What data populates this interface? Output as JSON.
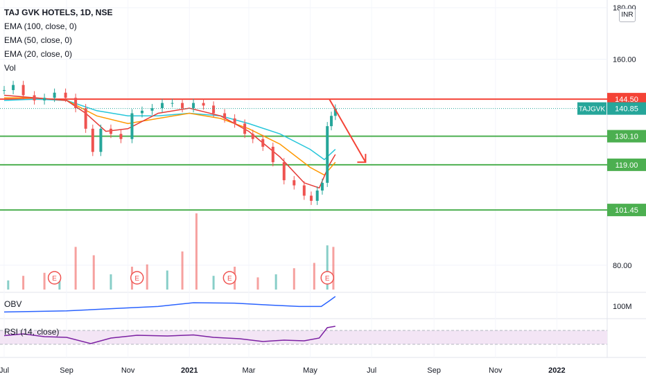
{
  "header": {
    "title": "TAJ GVK HOTELS, 1D, NSE",
    "indicators": [
      "EMA (100, close, 0)",
      "EMA (50, close, 0)",
      "EMA (20, close, 0)",
      "Vol"
    ],
    "currency": "INR"
  },
  "panes": {
    "obv_label": "OBV",
    "obv_scale_label": "100M",
    "rsi_label": "RSI (14, close)"
  },
  "colors": {
    "up": "#26a69a",
    "down": "#ef5350",
    "ema20": "#e53935",
    "ema50": "#ff9800",
    "ema100": "#26c6da",
    "support": "#4caf50",
    "resistance": "#f44336",
    "obv": "#2962ff",
    "rsi": "#7b1fa2",
    "rsi_band": "#f3e5f5",
    "badge": "#26a69a"
  },
  "chart_data": {
    "type": "candlestick",
    "title": "TAJ GVK HOTELS, 1D, NSE",
    "x_tick_labels": [
      "Jul",
      "Sep",
      "Nov",
      "2021",
      "Mar",
      "May",
      "Jul",
      "Sep",
      "Nov",
      "2022"
    ],
    "x_tick_dates": [
      "2020-07-01",
      "2020-09-01",
      "2020-11-01",
      "2021-01-01",
      "2021-03-01",
      "2021-05-01",
      "2021-07-01",
      "2021-09-01",
      "2021-11-01",
      "2022-01-01"
    ],
    "y_tick_labels": [
      "180.00",
      "160.00",
      "80.00"
    ],
    "price_axis_ticks": [
      180,
      160,
      80
    ],
    "ylim": [
      70,
      183
    ],
    "xlim": [
      "2020-07-01",
      "2022-02-20"
    ],
    "horizontal_levels": [
      {
        "label": "144.50",
        "value": 144.5,
        "kind": "resistance"
      },
      {
        "label": "130.10",
        "value": 130.1,
        "kind": "support"
      },
      {
        "label": "119.00",
        "value": 119.0,
        "kind": "support"
      },
      {
        "label": "101.45",
        "value": 101.45,
        "kind": "support"
      }
    ],
    "last_price": {
      "symbol": "TAJGVK",
      "label": "140.85",
      "value": 140.85
    },
    "arrow": {
      "from": {
        "date": "2021-05-20",
        "value": 144.5
      },
      "to": {
        "date": "2021-06-25",
        "value": 120.0
      }
    },
    "earnings_markers": {
      "label": "E",
      "dates": [
        "2020-08-20",
        "2020-11-10",
        "2021-02-10",
        "2021-05-18"
      ]
    },
    "close_series": [
      [
        "2020-07-01",
        148
      ],
      [
        "2020-07-10",
        150
      ],
      [
        "2020-07-20",
        146
      ],
      [
        "2020-07-31",
        144
      ],
      [
        "2020-08-10",
        145
      ],
      [
        "2020-08-20",
        147
      ],
      [
        "2020-08-31",
        145
      ],
      [
        "2020-09-10",
        141
      ],
      [
        "2020-09-20",
        133
      ],
      [
        "2020-09-27",
        124
      ],
      [
        "2020-10-05",
        133
      ],
      [
        "2020-10-15",
        131
      ],
      [
        "2020-10-25",
        129
      ],
      [
        "2020-11-05",
        139
      ],
      [
        "2020-11-15",
        140
      ],
      [
        "2020-11-25",
        141
      ],
      [
        "2020-12-05",
        143
      ],
      [
        "2020-12-15",
        143
      ],
      [
        "2020-12-25",
        141
      ],
      [
        "2021-01-05",
        143
      ],
      [
        "2021-01-15",
        142
      ],
      [
        "2021-01-25",
        139
      ],
      [
        "2021-02-05",
        137
      ],
      [
        "2021-02-15",
        135
      ],
      [
        "2021-02-25",
        131
      ],
      [
        "2021-03-05",
        129
      ],
      [
        "2021-03-15",
        126
      ],
      [
        "2021-03-25",
        120
      ],
      [
        "2021-04-05",
        113
      ],
      [
        "2021-04-15",
        111
      ],
      [
        "2021-04-25",
        107
      ],
      [
        "2021-05-02",
        105
      ],
      [
        "2021-05-08",
        109
      ],
      [
        "2021-05-13",
        112
      ],
      [
        "2021-05-18",
        134
      ],
      [
        "2021-05-22",
        138
      ],
      [
        "2021-05-26",
        140.85
      ]
    ],
    "ema20": [
      [
        "2020-07-01",
        146
      ],
      [
        "2020-08-01",
        145
      ],
      [
        "2020-09-01",
        144
      ],
      [
        "2020-09-20",
        139
      ],
      [
        "2020-10-10",
        132
      ],
      [
        "2020-11-01",
        133
      ],
      [
        "2020-12-01",
        139
      ],
      [
        "2021-01-01",
        141
      ],
      [
        "2021-02-01",
        138
      ],
      [
        "2021-03-01",
        132
      ],
      [
        "2021-04-01",
        122
      ],
      [
        "2021-04-25",
        112
      ],
      [
        "2021-05-10",
        110
      ],
      [
        "2021-05-20",
        119
      ],
      [
        "2021-05-26",
        123
      ]
    ],
    "ema50": [
      [
        "2020-07-01",
        145
      ],
      [
        "2020-08-01",
        145
      ],
      [
        "2020-09-01",
        144
      ],
      [
        "2020-10-01",
        138
      ],
      [
        "2020-11-01",
        135
      ],
      [
        "2020-12-01",
        137
      ],
      [
        "2021-01-01",
        139
      ],
      [
        "2021-02-01",
        137
      ],
      [
        "2021-03-01",
        133
      ],
      [
        "2021-04-01",
        127
      ],
      [
        "2021-05-01",
        118
      ],
      [
        "2021-05-15",
        115
      ],
      [
        "2021-05-26",
        120
      ]
    ],
    "ema100": [
      [
        "2020-07-01",
        144
      ],
      [
        "2020-08-01",
        144.5
      ],
      [
        "2020-09-01",
        144
      ],
      [
        "2020-10-01",
        140
      ],
      [
        "2020-11-01",
        138
      ],
      [
        "2020-12-01",
        138
      ],
      [
        "2021-01-01",
        139
      ],
      [
        "2021-02-01",
        138
      ],
      [
        "2021-03-01",
        135
      ],
      [
        "2021-04-01",
        131
      ],
      [
        "2021-05-01",
        125
      ],
      [
        "2021-05-15",
        121
      ],
      [
        "2021-05-26",
        125
      ]
    ],
    "volume_relative": [
      [
        "2020-07-05",
        0.12
      ],
      [
        "2020-07-20",
        0.18
      ],
      [
        "2020-08-10",
        0.22
      ],
      [
        "2020-08-25",
        0.15
      ],
      [
        "2020-09-10",
        0.56
      ],
      [
        "2020-09-28",
        0.45
      ],
      [
        "2020-10-15",
        0.2
      ],
      [
        "2020-11-05",
        0.3
      ],
      [
        "2020-11-20",
        0.33
      ],
      [
        "2020-12-10",
        0.25
      ],
      [
        "2020-12-25",
        0.5
      ],
      [
        "2021-01-08",
        1.0
      ],
      [
        "2021-01-25",
        0.18
      ],
      [
        "2021-02-15",
        0.3
      ],
      [
        "2021-03-10",
        0.16
      ],
      [
        "2021-03-28",
        0.2
      ],
      [
        "2021-04-15",
        0.28
      ],
      [
        "2021-05-05",
        0.35
      ],
      [
        "2021-05-18",
        0.58
      ],
      [
        "2021-05-24",
        0.56
      ]
    ],
    "obv_relative": [
      [
        "2020-07-01",
        0.3
      ],
      [
        "2020-09-01",
        0.35
      ],
      [
        "2020-10-15",
        0.45
      ],
      [
        "2020-12-01",
        0.55
      ],
      [
        "2021-01-05",
        0.72
      ],
      [
        "2021-02-15",
        0.7
      ],
      [
        "2021-03-20",
        0.62
      ],
      [
        "2021-04-20",
        0.55
      ],
      [
        "2021-05-12",
        0.55
      ],
      [
        "2021-05-20",
        0.8
      ],
      [
        "2021-05-26",
        1.0
      ]
    ],
    "rsi": [
      [
        "2020-07-01",
        55
      ],
      [
        "2020-07-20",
        60
      ],
      [
        "2020-08-10",
        52
      ],
      [
        "2020-09-01",
        50
      ],
      [
        "2020-09-25",
        32
      ],
      [
        "2020-10-15",
        48
      ],
      [
        "2020-11-10",
        56
      ],
      [
        "2020-12-10",
        54
      ],
      [
        "2021-01-05",
        57
      ],
      [
        "2021-01-25",
        50
      ],
      [
        "2021-02-20",
        46
      ],
      [
        "2021-03-15",
        38
      ],
      [
        "2021-04-05",
        42
      ],
      [
        "2021-04-25",
        40
      ],
      [
        "2021-05-10",
        48
      ],
      [
        "2021-05-18",
        78
      ],
      [
        "2021-05-26",
        82
      ]
    ],
    "rsi_band": [
      30,
      70
    ]
  }
}
